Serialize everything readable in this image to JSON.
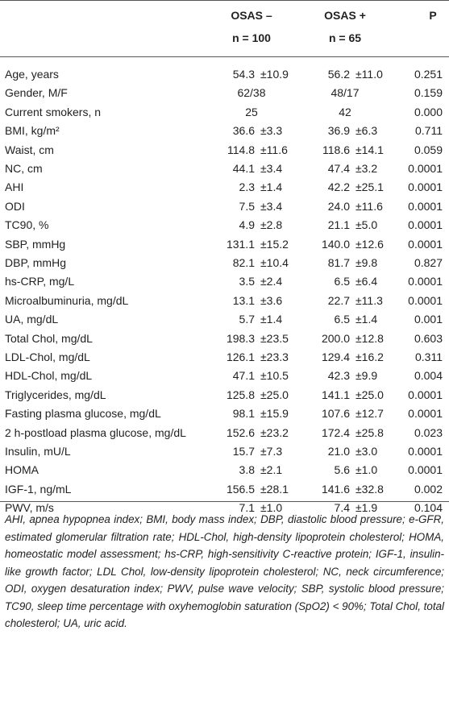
{
  "table": {
    "header": {
      "col1": [
        "OSAS –",
        "n = 100"
      ],
      "col2": [
        "OSAS +",
        "n = 65"
      ],
      "p": "P"
    },
    "rows": [
      {
        "label": "Age, years",
        "osas_neg": [
          "54.3",
          "±10.9"
        ],
        "osas_pos": [
          "56.2",
          "±11.0"
        ],
        "p": "0.251"
      },
      {
        "label": "Gender, M/F",
        "osas_neg": [
          "62/38"
        ],
        "osas_pos": [
          "48/17"
        ],
        "p": "0.159"
      },
      {
        "label": "Current smokers, n",
        "osas_neg": [
          "25"
        ],
        "osas_pos": [
          "42"
        ],
        "p": "0.000"
      },
      {
        "label": "BMI, kg/m²",
        "osas_neg": [
          "36.6",
          "±3.3"
        ],
        "osas_pos": [
          "36.9",
          "±6.3"
        ],
        "p": "0.711"
      },
      {
        "label": "Waist, cm",
        "osas_neg": [
          "114.8",
          "±11.6"
        ],
        "osas_pos": [
          "118.6",
          "±14.1"
        ],
        "p": "0.059"
      },
      {
        "label": "NC, cm",
        "osas_neg": [
          "44.1",
          "±3.4"
        ],
        "osas_pos": [
          "47.4",
          "±3.2"
        ],
        "p": "0.0001"
      },
      {
        "label": "AHI",
        "osas_neg": [
          "2.3",
          "±1.4"
        ],
        "osas_pos": [
          "42.2",
          "±25.1"
        ],
        "p": "0.0001"
      },
      {
        "label": "ODI",
        "osas_neg": [
          "7.5",
          "±3.4"
        ],
        "osas_pos": [
          "24.0",
          "±11.6"
        ],
        "p": "0.0001"
      },
      {
        "label": "TC90, %",
        "osas_neg": [
          "4.9",
          "±2.8"
        ],
        "osas_pos": [
          "21.1",
          "±5.0"
        ],
        "p": "0.0001"
      },
      {
        "label": "SBP, mmHg",
        "osas_neg": [
          "131.1",
          "±15.2"
        ],
        "osas_pos": [
          "140.0",
          "±12.6"
        ],
        "p": "0.0001"
      },
      {
        "label": "DBP, mmHg",
        "osas_neg": [
          "82.1",
          "±10.4"
        ],
        "osas_pos": [
          "81.7",
          "±9.8"
        ],
        "p": "0.827"
      },
      {
        "label": "hs-CRP, mg/L",
        "osas_neg": [
          "3.5",
          "±2.4"
        ],
        "osas_pos": [
          "6.5",
          "±6.4"
        ],
        "p": "0.0001"
      },
      {
        "label": "Microalbuminuria, mg/dL",
        "osas_neg": [
          "13.1",
          "±3.6"
        ],
        "osas_pos": [
          "22.7",
          "±11.3"
        ],
        "p": "0.0001"
      },
      {
        "label": "UA, mg/dL",
        "osas_neg": [
          "5.7",
          "±1.4"
        ],
        "osas_pos": [
          "6.5",
          "±1.4"
        ],
        "p": "0.001"
      },
      {
        "label": "Total Chol, mg/dL",
        "osas_neg": [
          "198.3",
          "±23.5"
        ],
        "osas_pos": [
          "200.0",
          "±12.8"
        ],
        "p": "0.603"
      },
      {
        "label": "LDL-Chol, mg/dL",
        "osas_neg": [
          "126.1",
          "±23.3"
        ],
        "osas_pos": [
          "129.4",
          "±16.2"
        ],
        "p": "0.311"
      },
      {
        "label": "HDL-Chol, mg/dL",
        "osas_neg": [
          "47.1",
          "±10.5"
        ],
        "osas_pos": [
          "42.3",
          "±9.9"
        ],
        "p": "0.004"
      },
      {
        "label": "Triglycerides, mg/dL",
        "osas_neg": [
          "125.8",
          "±25.0"
        ],
        "osas_pos": [
          "141.1",
          "±25.0"
        ],
        "p": "0.0001"
      },
      {
        "label": "Fasting plasma glucose, mg/dL",
        "osas_neg": [
          "98.1",
          "±15.9"
        ],
        "osas_pos": [
          "107.6",
          "±12.7"
        ],
        "p": "0.0001"
      },
      {
        "label": "2 h-postload plasma glucose, mg/dL",
        "osas_neg": [
          "152.6",
          "±23.2"
        ],
        "osas_pos": [
          "172.4",
          "±25.8"
        ],
        "p": "0.023"
      },
      {
        "label": "Insulin, mU/L",
        "osas_neg": [
          "15.7",
          "±7.3"
        ],
        "osas_pos": [
          "21.0",
          "±3.0"
        ],
        "p": "0.0001"
      },
      {
        "label": "HOMA",
        "osas_neg": [
          "3.8",
          "±2.1"
        ],
        "osas_pos": [
          "5.6",
          "±1.0"
        ],
        "p": "0.0001"
      },
      {
        "label": "IGF-1, ng/mL",
        "osas_neg": [
          "156.5",
          "±28.1"
        ],
        "osas_pos": [
          "141.6",
          "±32.8"
        ],
        "p": "0.002"
      },
      {
        "label": "PWV, m/s",
        "osas_neg": [
          "7.1",
          "±1.0"
        ],
        "osas_pos": [
          "7.4",
          "±1.9"
        ],
        "p": "0.104"
      }
    ],
    "footnote": "AHI, apnea hypopnea index; BMI, body mass index; DBP, diastolic blood pressure; e-GFR, estimated glomerular filtration rate; HDL-Chol, high-density lipoprotein cholesterol; HOMA, homeostatic model assessment; hs-CRP, high-sensitivity C-reactive protein; IGF-1, insulin-like growth factor; LDL Chol, low-density lipoprotein cholesterol; NC, neck circumference; ODI, oxygen desaturation index; PWV, pulse wave velocity; SBP, systolic blood pressure; TC90, sleep time percentage with oxyhemoglobin saturation (SpO2) < 90%; Total Chol, total cholesterol; UA, uric acid."
  }
}
